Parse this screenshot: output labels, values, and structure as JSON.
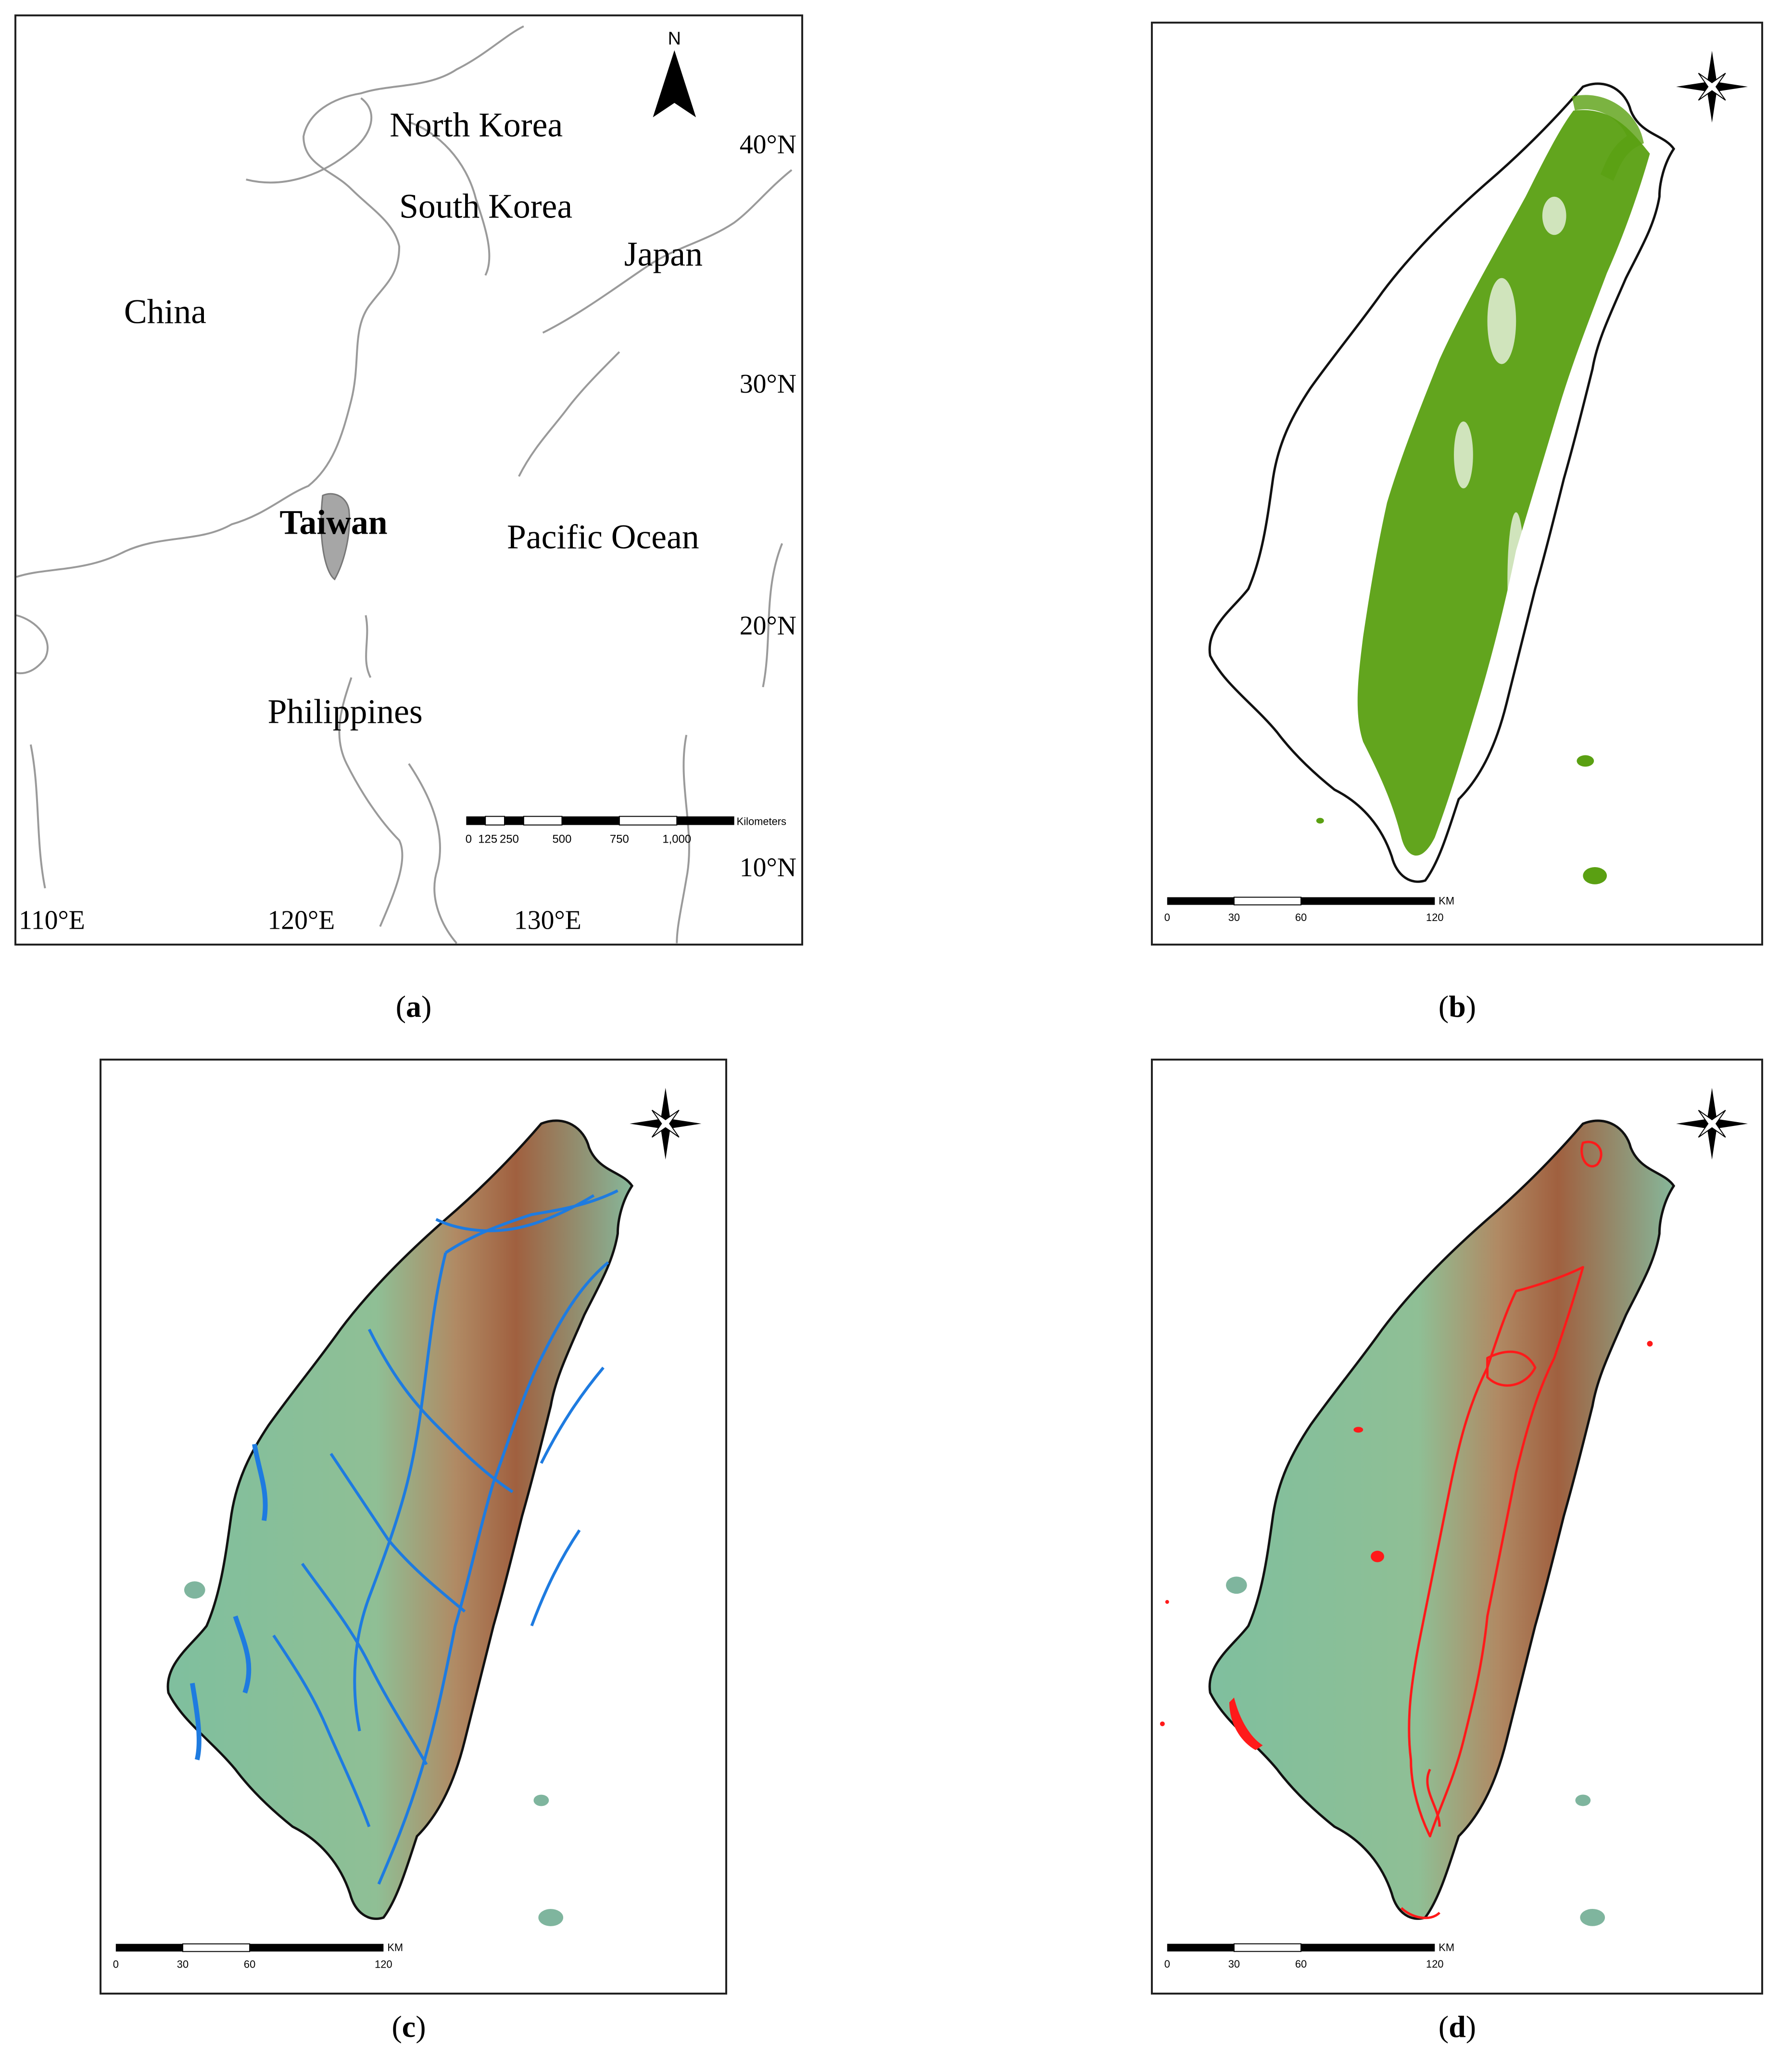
{
  "panel_a": {
    "countries": [
      "North Korea",
      "South Korea",
      "Japan",
      "China",
      "Taiwan",
      "Pacific Ocean",
      "Philippines"
    ],
    "north_label": "N",
    "lat_labels": [
      "40°N",
      "30°N",
      "20°N",
      "10°N"
    ],
    "lon_labels": [
      "110°E",
      "120°E",
      "130°E"
    ],
    "scale_ticks": [
      "0",
      "125",
      "250",
      "500",
      "750",
      "1,000"
    ],
    "scale_unit": "Kilometers",
    "colors": {
      "land_outline": "#9a9a9a",
      "taiwan_fill": "#a6a6a6"
    }
  },
  "panel_b": {
    "scale_unit": "KM",
    "scale_ticks": [
      "0",
      "30",
      "60",
      "120"
    ],
    "colors": {
      "forest": "#5aa012"
    }
  },
  "panel_c": {
    "scale_unit": "KM",
    "scale_ticks": [
      "0",
      "30",
      "60",
      "120"
    ],
    "colors": {
      "rivers": "#1e7be0",
      "lowland": "#7fbf9e",
      "highland": "#a0603f"
    }
  },
  "panel_d": {
    "scale_unit": "KM",
    "scale_ticks": [
      "0",
      "30",
      "60",
      "120"
    ],
    "colors": {
      "boundaries": "#ff1a1a",
      "lowland": "#7fbf9e",
      "highland": "#a0603f"
    }
  },
  "captions": {
    "a": "a",
    "b": "b",
    "c": "c",
    "d": "d"
  }
}
